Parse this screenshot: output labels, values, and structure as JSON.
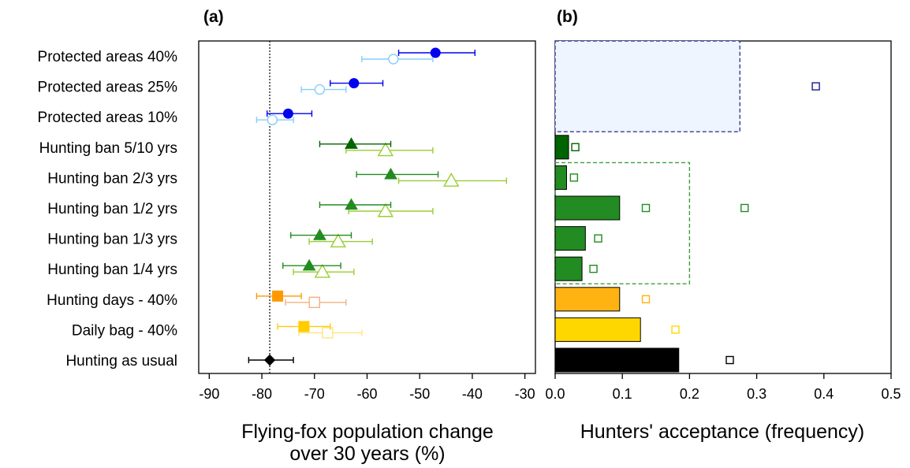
{
  "chart_data": [
    {
      "type": "scatter",
      "panel_label": "(a)",
      "xlabel_line1": "Flying-fox population change",
      "xlabel_line2": "over 30 years (%)",
      "xlim": [
        -92,
        -28
      ],
      "xticks": [
        -90,
        -80,
        -70,
        -60,
        -50,
        -40,
        -30
      ],
      "xtick_labels": [
        "-90",
        "-80",
        "-70",
        "-60",
        "-50",
        "-40",
        "-30"
      ],
      "reference_line_x": -78.5,
      "categories": [
        "Protected areas 40%",
        "Protected areas 25%",
        "Protected areas 10%",
        "Hunting ban 5/10 yrs",
        "Hunting ban 2/3 yrs",
        "Hunting ban 1/2 yrs",
        "Hunting ban 1/3 yrs",
        "Hunting ban 1/4 yrs",
        "Hunting days - 40%",
        "Daily bag - 40%",
        "Hunting as usual"
      ],
      "series": [
        {
          "marker": "filled",
          "points": [
            {
              "category": "Protected areas 40%",
              "x": -47,
              "low": -54,
              "high": -39.5,
              "shape": "circle",
              "color": "#0000ee"
            },
            {
              "category": "Protected areas 25%",
              "x": -62.5,
              "low": -67,
              "high": -57,
              "shape": "circle",
              "color": "#0000ee"
            },
            {
              "category": "Protected areas 10%",
              "x": -75,
              "low": -79,
              "high": -70.5,
              "shape": "circle",
              "color": "#0000ee"
            },
            {
              "category": "Hunting ban 5/10 yrs",
              "x": -63,
              "low": -69,
              "high": -55.5,
              "shape": "triangle",
              "color": "#006400"
            },
            {
              "category": "Hunting ban 2/3 yrs",
              "x": -55.5,
              "low": -62,
              "high": -46.5,
              "shape": "triangle",
              "color": "#228b22"
            },
            {
              "category": "Hunting ban 1/2 yrs",
              "x": -63,
              "low": -69,
              "high": -55.5,
              "shape": "triangle",
              "color": "#228b22"
            },
            {
              "category": "Hunting ban 1/3 yrs",
              "x": -69,
              "low": -74.5,
              "high": -63,
              "shape": "triangle",
              "color": "#228b22"
            },
            {
              "category": "Hunting ban 1/4 yrs",
              "x": -71,
              "low": -76,
              "high": -65,
              "shape": "triangle",
              "color": "#228b22"
            },
            {
              "category": "Hunting days - 40%",
              "x": -77,
              "low": -81,
              "high": -72.5,
              "shape": "square",
              "color": "#ff9900"
            },
            {
              "category": "Daily bag - 40%",
              "x": -72,
              "low": -77,
              "high": -67,
              "shape": "square",
              "color": "#ffcc00"
            },
            {
              "category": "Hunting as usual",
              "x": -78.5,
              "low": -82.5,
              "high": -74,
              "shape": "diamond",
              "color": "#000000"
            }
          ]
        },
        {
          "marker": "open",
          "points": [
            {
              "category": "Protected areas 40%",
              "x": -55,
              "low": -61,
              "high": -47.5,
              "shape": "circle",
              "color": "#87cefa"
            },
            {
              "category": "Protected areas 25%",
              "x": -69,
              "low": -72.5,
              "high": -64,
              "shape": "circle",
              "color": "#87cefa"
            },
            {
              "category": "Protected areas 10%",
              "x": -78,
              "low": -81,
              "high": -74,
              "shape": "circle",
              "color": "#87cefa"
            },
            {
              "category": "Hunting ban 5/10 yrs",
              "x": -56.5,
              "low": -64,
              "high": -47.5,
              "shape": "triangle",
              "color": "#9acd32"
            },
            {
              "category": "Hunting ban 2/3 yrs",
              "x": -44,
              "low": -54,
              "high": -33.5,
              "shape": "triangle",
              "color": "#9acd32"
            },
            {
              "category": "Hunting ban 1/2 yrs",
              "x": -56.5,
              "low": -63.5,
              "high": -47.5,
              "shape": "triangle",
              "color": "#9acd32"
            },
            {
              "category": "Hunting ban 1/3 yrs",
              "x": -65.5,
              "low": -71,
              "high": -59,
              "shape": "triangle",
              "color": "#9acd32"
            },
            {
              "category": "Hunting ban 1/4 yrs",
              "x": -68.5,
              "low": -74,
              "high": -62.5,
              "shape": "triangle",
              "color": "#9acd32"
            },
            {
              "category": "Hunting days - 40%",
              "x": -70,
              "low": -75.5,
              "high": -64,
              "shape": "square",
              "color": "#f4b183"
            },
            {
              "category": "Daily bag - 40%",
              "x": -67.5,
              "low": -73,
              "high": -61,
              "shape": "square",
              "color": "#ffe680"
            }
          ]
        }
      ]
    },
    {
      "type": "bar",
      "orientation": "horizontal",
      "panel_label": "(b)",
      "xlabel": "Hunters' acceptance (frequency)",
      "xlim": [
        0,
        0.5
      ],
      "xticks": [
        0,
        0.1,
        0.2,
        0.3,
        0.4,
        0.5
      ],
      "xtick_labels": [
        "0.0",
        "0.1",
        "0.2",
        "0.3",
        "0.4",
        "0.5"
      ],
      "group_boxes": [
        {
          "categories": [
            "Protected areas 40%",
            "Protected areas 10%"
          ],
          "value": 0.275,
          "color": "#3a3a9a",
          "fill": "#eef5ff"
        },
        {
          "categories": [
            "Hunting ban 2/3 yrs",
            "Hunting ban 1/4 yrs"
          ],
          "value": 0.2,
          "color": "#3aa03a"
        }
      ],
      "bars": [
        {
          "category": "Hunting ban 5/10 yrs",
          "value": 0.02,
          "fill": "#006400"
        },
        {
          "category": "Hunting ban 2/3 yrs",
          "value": 0.017,
          "fill": "#228b22"
        },
        {
          "category": "Hunting ban 1/2 yrs",
          "value": 0.096,
          "fill": "#228b22"
        },
        {
          "category": "Hunting ban 1/3 yrs",
          "value": 0.045,
          "fill": "#228b22"
        },
        {
          "category": "Hunting ban 1/4 yrs",
          "value": 0.04,
          "fill": "#228b22"
        },
        {
          "category": "Hunting days - 40%",
          "value": 0.096,
          "fill": "#ffb313"
        },
        {
          "category": "Daily bag - 40%",
          "value": 0.127,
          "fill": "#ffd700"
        },
        {
          "category": "Hunting as usual",
          "value": 0.184,
          "fill": "#000000"
        }
      ],
      "open_squares": [
        {
          "category": "Protected areas 25%",
          "value": 0.388,
          "color": "#1a1a8c"
        },
        {
          "category": "Hunting ban 5/10 yrs",
          "value": 0.03,
          "color": "#006400"
        },
        {
          "category": "Hunting ban 2/3 yrs",
          "value": 0.028,
          "color": "#228b22"
        },
        {
          "category": "Hunting ban 1/2 yrs",
          "value": 0.135,
          "color": "#228b22"
        },
        {
          "category": "Hunting ban 1/2 yrs",
          "value": 0.282,
          "color": "#228b22"
        },
        {
          "category": "Hunting ban 1/3 yrs",
          "value": 0.064,
          "color": "#228b22"
        },
        {
          "category": "Hunting ban 1/4 yrs",
          "value": 0.057,
          "color": "#228b22"
        },
        {
          "category": "Hunting days - 40%",
          "value": 0.135,
          "color": "#ffb313"
        },
        {
          "category": "Daily bag - 40%",
          "value": 0.179,
          "color": "#ffd700"
        },
        {
          "category": "Hunting as usual",
          "value": 0.26,
          "color": "#000000"
        }
      ]
    }
  ]
}
